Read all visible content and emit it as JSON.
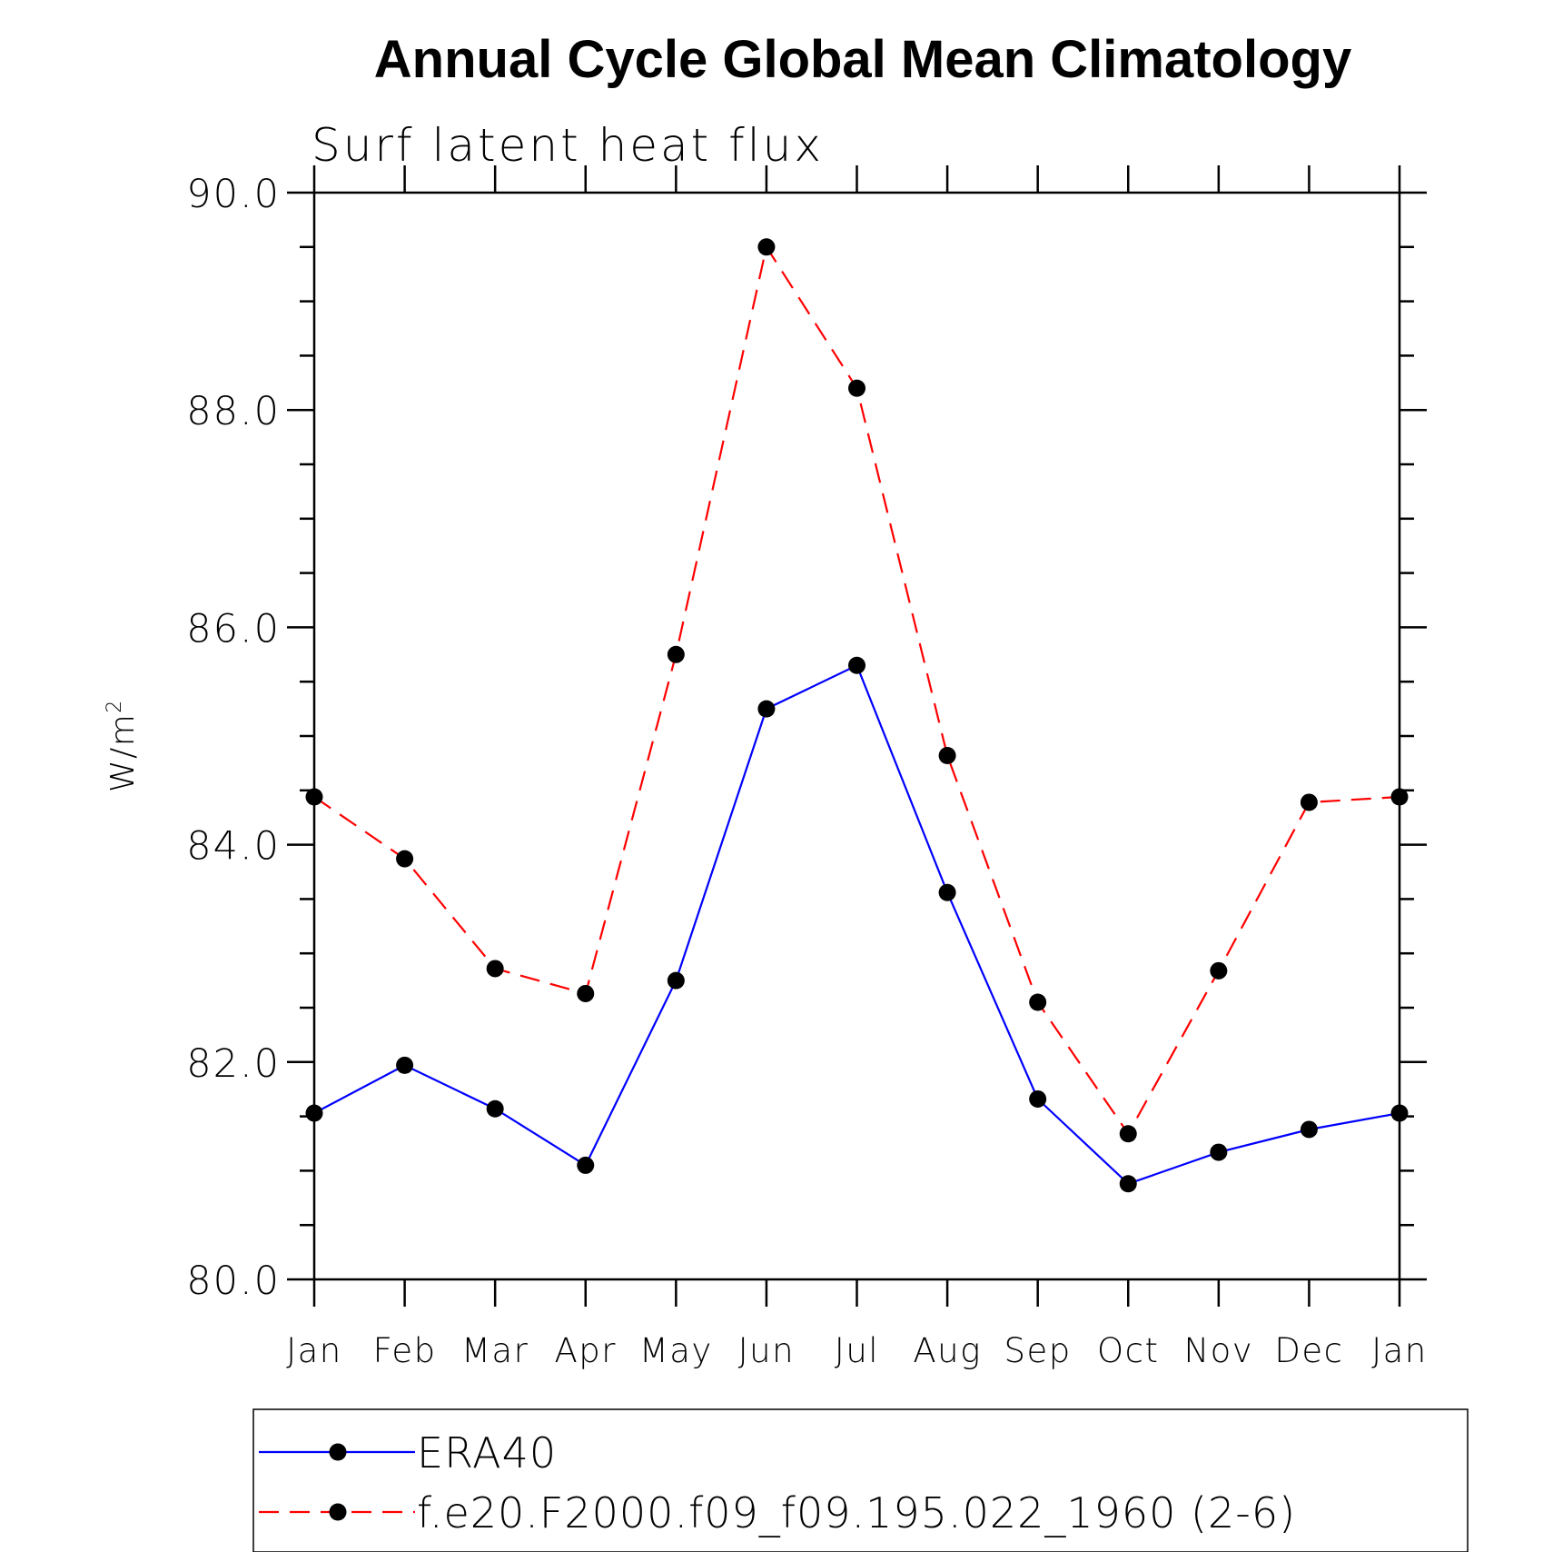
{
  "chart_data": {
    "type": "line",
    "title": "Annual Cycle Global Mean Climatology",
    "subtitle": "Surf latent heat flux",
    "ylabel": "W/m",
    "ylabel_sup": "2",
    "xlabel": "",
    "ylim": [
      80.0,
      90.0
    ],
    "yticks": [
      "80.0",
      "82.0",
      "84.0",
      "86.0",
      "88.0",
      "90.0"
    ],
    "categories": [
      "Jan",
      "Feb",
      "Mar",
      "Apr",
      "May",
      "Jun",
      "Jul",
      "Aug",
      "Sep",
      "Oct",
      "Nov",
      "Dec",
      "Jan"
    ],
    "grid": false,
    "legend_position": "bottom",
    "series": [
      {
        "name": "ERA40",
        "color": "#0000ff",
        "line_style": "solid",
        "marker": "filled-circle",
        "values": [
          81.53,
          81.97,
          81.57,
          81.05,
          82.75,
          85.25,
          85.65,
          83.56,
          81.66,
          80.88,
          81.17,
          81.38,
          81.53
        ]
      },
      {
        "name": "f.e20.F2000.f09_f09.195.022_1960 (2-6)",
        "color": "#ff0000",
        "line_style": "dashed",
        "marker": "filled-circle",
        "values": [
          84.44,
          83.87,
          82.86,
          82.63,
          85.75,
          89.5,
          88.2,
          84.82,
          82.55,
          81.34,
          82.84,
          84.39,
          84.44
        ]
      }
    ]
  }
}
